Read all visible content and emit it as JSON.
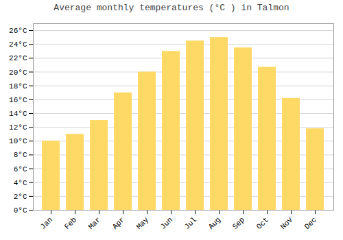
{
  "chart_data": {
    "type": "bar",
    "title": "Average monthly temperatures (°C ) in Talmon",
    "categories": [
      "Jan",
      "Feb",
      "Mar",
      "Apr",
      "May",
      "Jun",
      "Jul",
      "Aug",
      "Sep",
      "Oct",
      "Nov",
      "Dec"
    ],
    "values": [
      10.0,
      11.0,
      13.0,
      17.0,
      20.0,
      23.0,
      24.5,
      25.0,
      23.5,
      20.7,
      16.2,
      11.8
    ],
    "color": "#FFD966",
    "ylim": [
      0,
      27
    ],
    "yticks": [
      {
        "value": 0,
        "label": "0°C"
      },
      {
        "value": 2,
        "label": "2°C"
      },
      {
        "value": 4,
        "label": "4°C"
      },
      {
        "value": 6,
        "label": "6°C"
      },
      {
        "value": 8,
        "label": "8°C"
      },
      {
        "value": 10,
        "label": "10°C"
      },
      {
        "value": 12,
        "label": "12°C"
      },
      {
        "value": 14,
        "label": "14°C"
      },
      {
        "value": 16,
        "label": "16°C"
      },
      {
        "value": 18,
        "label": "18°C"
      },
      {
        "value": 20,
        "label": "20°C"
      },
      {
        "value": 22,
        "label": "22°C"
      },
      {
        "value": 24,
        "label": "24°C"
      },
      {
        "value": 26,
        "label": "26°C"
      }
    ],
    "grid": true
  }
}
